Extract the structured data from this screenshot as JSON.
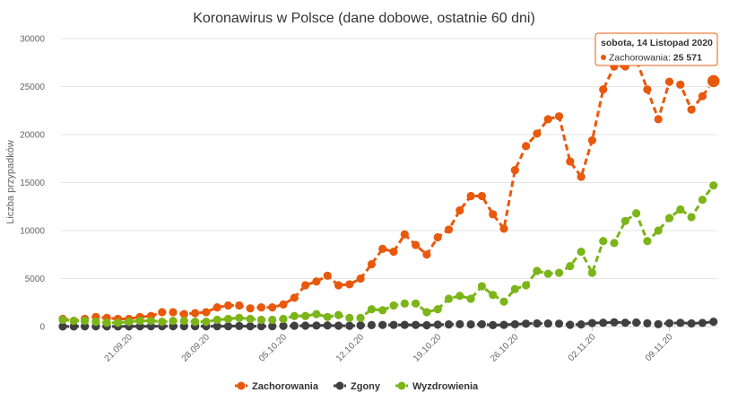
{
  "chart_data": {
    "type": "line",
    "title": "Koronawirus w Polsce (dane dobowe, ostatnie 60 dni)",
    "ylabel": "Liczba przypadków",
    "xlabel": "",
    "ylim": [
      0,
      30000
    ],
    "yticks": [
      0,
      5000,
      10000,
      15000,
      20000,
      25000,
      30000
    ],
    "x_tick_labels": [
      {
        "day": 6,
        "label": "21.09.20"
      },
      {
        "day": 13,
        "label": "28.09.20"
      },
      {
        "day": 20,
        "label": "05.10.20"
      },
      {
        "day": 27,
        "label": "12.10.20"
      },
      {
        "day": 34,
        "label": "19.10.20"
      },
      {
        "day": 41,
        "label": "26.10.20"
      },
      {
        "day": 48,
        "label": "02.11.20"
      },
      {
        "day": 55,
        "label": "09.11.20"
      }
    ],
    "x_range_days": [
      0,
      60
    ],
    "grid": "horizontal",
    "legend_position": "bottom",
    "series": [
      {
        "name": "Zachorowania",
        "color": "#e8590c",
        "values": [
          800,
          600,
          800,
          1000,
          900,
          800,
          800,
          1000,
          1100,
          1500,
          1500,
          1300,
          1400,
          1500,
          2000,
          2200,
          2200,
          1900,
          2000,
          2000,
          2300,
          3000,
          4300,
          4700,
          5300,
          4300,
          4400,
          5000,
          6500,
          8100,
          7800,
          9600,
          8500,
          7500,
          9300,
          10100,
          12100,
          13600,
          13600,
          11700,
          10200,
          16300,
          18800,
          20100,
          21600,
          21900,
          17200,
          15600,
          19400,
          24700,
          27100,
          27100,
          27800,
          24700,
          21600,
          25500,
          25200,
          22600,
          24000,
          25571
        ]
      },
      {
        "name": "Zgony",
        "color": "#404040",
        "values": [
          10,
          10,
          20,
          20,
          10,
          10,
          20,
          20,
          30,
          30,
          30,
          30,
          40,
          30,
          40,
          40,
          60,
          30,
          40,
          40,
          70,
          80,
          90,
          110,
          120,
          90,
          80,
          130,
          150,
          170,
          170,
          180,
          170,
          140,
          200,
          220,
          250,
          230,
          240,
          150,
          180,
          240,
          300,
          330,
          320,
          300,
          190,
          220,
          370,
          400,
          450,
          400,
          420,
          340,
          250,
          350,
          390,
          330,
          380,
          500
        ]
      },
      {
        "name": "Wyzdrowienia",
        "color": "#7cb518",
        "values": [
          700,
          600,
          600,
          500,
          400,
          400,
          500,
          600,
          600,
          500,
          600,
          600,
          500,
          500,
          700,
          800,
          900,
          800,
          700,
          700,
          800,
          1100,
          1100,
          1300,
          1000,
          1200,
          900,
          900,
          1800,
          1700,
          2200,
          2400,
          2400,
          1500,
          1800,
          2900,
          3200,
          2900,
          4200,
          3300,
          2600,
          3900,
          4300,
          5800,
          5500,
          5600,
          6300,
          7800,
          5600,
          8900,
          8700,
          11000,
          11800,
          8900,
          10000,
          11300,
          12200,
          11400,
          13200,
          14700
        ]
      }
    ],
    "tooltip": {
      "title": "sobota, 14 Listopad 2020",
      "series_label": "Zachorowania: ",
      "value_text": "25 571",
      "series_index": 0,
      "point_index": 59
    }
  }
}
